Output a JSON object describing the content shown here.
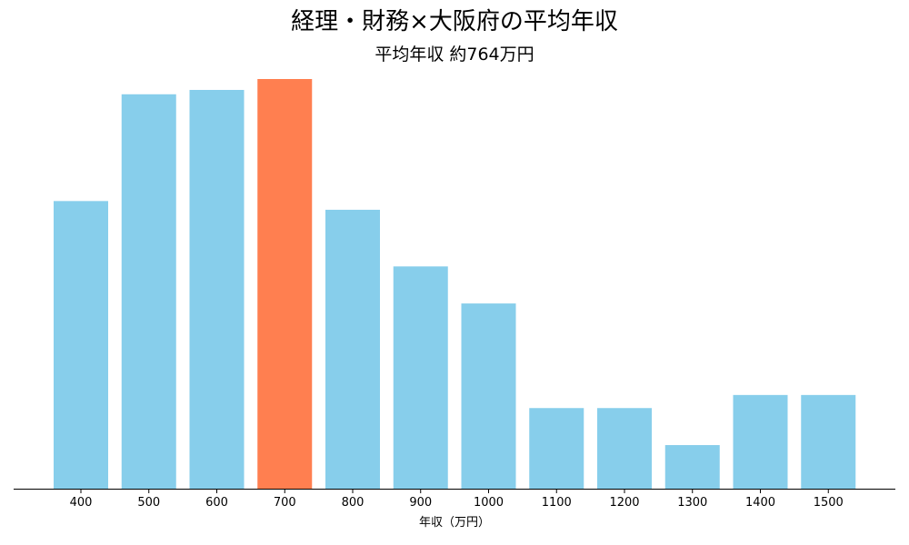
{
  "chart_data": {
    "type": "bar",
    "title": "経理・財務×大阪府の平均年収",
    "subtitle": "平均年収 約764万円",
    "xlabel": "年収（万円）",
    "ylabel": "",
    "categories": [
      "400",
      "500",
      "600",
      "700",
      "800",
      "900",
      "1000",
      "1100",
      "1200",
      "1300",
      "1400",
      "1500"
    ],
    "values": [
      66,
      90.5,
      91.5,
      94,
      64,
      51,
      42.5,
      18.5,
      18.5,
      10,
      21.5,
      21.5
    ],
    "highlight_category": "700",
    "ylim": [
      0,
      94
    ],
    "grid": false,
    "legend": "none",
    "colors": {
      "bar": "#87CEEB",
      "highlight": "#FF7F50",
      "axis": "#000000"
    }
  }
}
